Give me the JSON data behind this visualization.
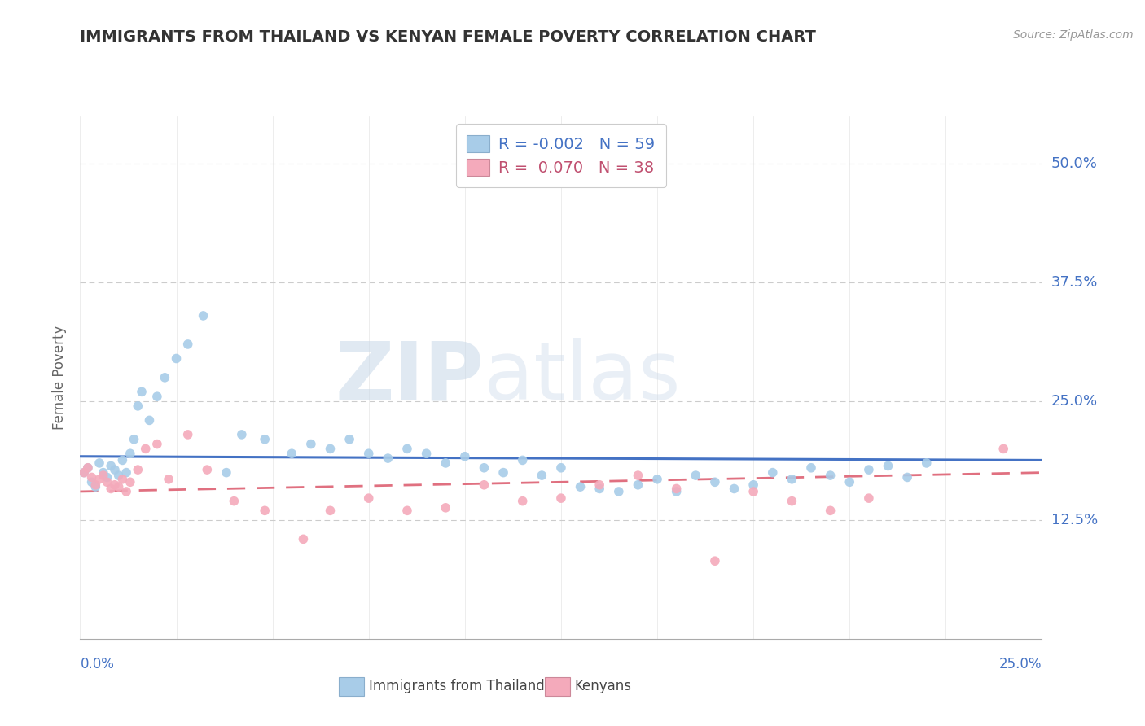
{
  "title": "IMMIGRANTS FROM THAILAND VS KENYAN FEMALE POVERTY CORRELATION CHART",
  "source": "Source: ZipAtlas.com",
  "ylabel": "Female Poverty",
  "ytick_labels": [
    "12.5%",
    "25.0%",
    "37.5%",
    "50.0%"
  ],
  "ytick_values": [
    0.125,
    0.25,
    0.375,
    0.5
  ],
  "xlim": [
    0.0,
    0.25
  ],
  "ylim": [
    0.0,
    0.55
  ],
  "legend_entry1": "R = -0.002   N = 59",
  "legend_entry2": "R =  0.070   N = 38",
  "legend_label1": "Immigrants from Thailand",
  "legend_label2": "Kenyans",
  "color_blue": "#A8CCE8",
  "color_pink": "#F4AABB",
  "color_blue_line": "#4472C4",
  "color_pink_line": "#E07080",
  "color_axis_text": "#4472C4",
  "color_title": "#333333",
  "color_source": "#999999",
  "watermark_zip": "ZIP",
  "watermark_atlas": "atlas",
  "background_color": "#FFFFFF",
  "grid_color": "#CCCCCC",
  "thailand_x": [
    0.001,
    0.002,
    0.003,
    0.004,
    0.005,
    0.006,
    0.007,
    0.008,
    0.009,
    0.01,
    0.011,
    0.012,
    0.013,
    0.014,
    0.015,
    0.016,
    0.018,
    0.02,
    0.022,
    0.025,
    0.028,
    0.032,
    0.038,
    0.042,
    0.048,
    0.055,
    0.06,
    0.065,
    0.07,
    0.075,
    0.08,
    0.085,
    0.09,
    0.095,
    0.1,
    0.105,
    0.11,
    0.115,
    0.12,
    0.125,
    0.13,
    0.135,
    0.14,
    0.145,
    0.15,
    0.155,
    0.16,
    0.165,
    0.17,
    0.175,
    0.18,
    0.185,
    0.19,
    0.195,
    0.2,
    0.205,
    0.21,
    0.215,
    0.22
  ],
  "thailand_y": [
    0.175,
    0.18,
    0.165,
    0.16,
    0.185,
    0.175,
    0.17,
    0.182,
    0.178,
    0.172,
    0.188,
    0.175,
    0.195,
    0.21,
    0.245,
    0.26,
    0.23,
    0.255,
    0.275,
    0.295,
    0.31,
    0.34,
    0.175,
    0.215,
    0.21,
    0.195,
    0.205,
    0.2,
    0.21,
    0.195,
    0.19,
    0.2,
    0.195,
    0.185,
    0.192,
    0.18,
    0.175,
    0.188,
    0.172,
    0.18,
    0.16,
    0.158,
    0.155,
    0.162,
    0.168,
    0.155,
    0.172,
    0.165,
    0.158,
    0.162,
    0.175,
    0.168,
    0.18,
    0.172,
    0.165,
    0.178,
    0.182,
    0.17,
    0.185
  ],
  "kenya_x": [
    0.001,
    0.002,
    0.003,
    0.004,
    0.005,
    0.006,
    0.007,
    0.008,
    0.009,
    0.01,
    0.011,
    0.012,
    0.013,
    0.015,
    0.017,
    0.02,
    0.023,
    0.028,
    0.033,
    0.04,
    0.048,
    0.058,
    0.065,
    0.075,
    0.085,
    0.095,
    0.105,
    0.115,
    0.125,
    0.135,
    0.145,
    0.155,
    0.165,
    0.175,
    0.185,
    0.195,
    0.205,
    0.24
  ],
  "kenya_y": [
    0.175,
    0.18,
    0.17,
    0.162,
    0.168,
    0.172,
    0.165,
    0.158,
    0.162,
    0.16,
    0.168,
    0.155,
    0.165,
    0.178,
    0.2,
    0.205,
    0.168,
    0.215,
    0.178,
    0.145,
    0.135,
    0.105,
    0.135,
    0.148,
    0.135,
    0.138,
    0.162,
    0.145,
    0.148,
    0.162,
    0.172,
    0.158,
    0.082,
    0.155,
    0.145,
    0.135,
    0.148,
    0.2
  ],
  "blue_line_y_start": 0.192,
  "blue_line_y_end": 0.188,
  "pink_line_y_start": 0.155,
  "pink_line_y_end": 0.175
}
